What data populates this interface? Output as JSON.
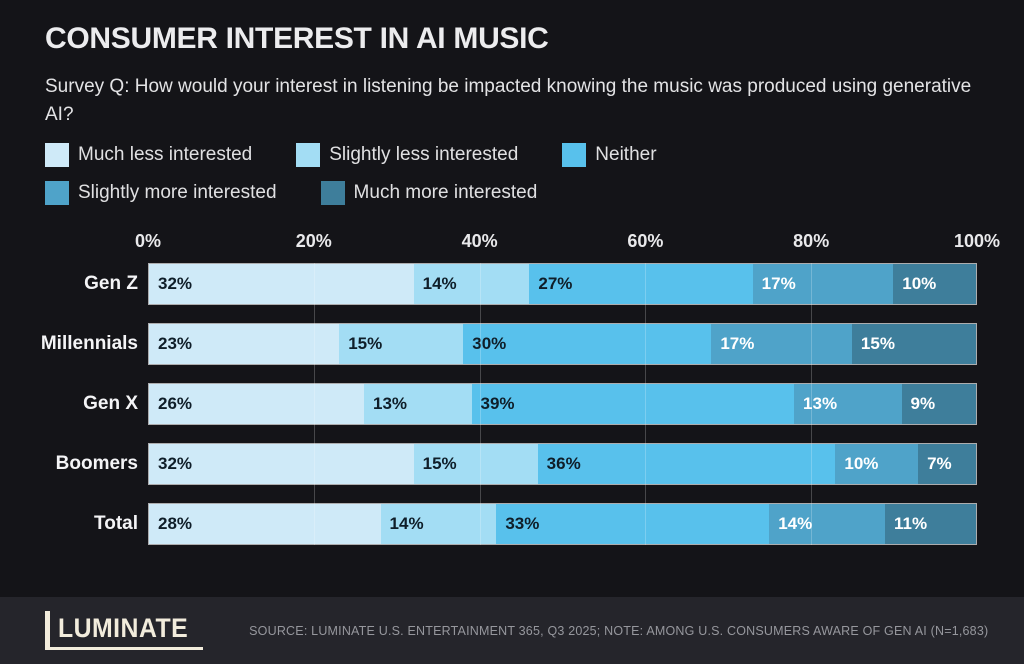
{
  "title": "CONSUMER INTEREST IN AI MUSIC",
  "subtitle": "Survey Q: How would your interest in listening be impacted knowing the music was produced using generative AI?",
  "colors": {
    "background": "#141418",
    "footer_background": "#25252b",
    "bar_border": "rgba(255,255,255,0.65)",
    "label_dark": "#0f1e29",
    "label_light": "#ffffff",
    "logo_cream": "#f2ecdc"
  },
  "chart_data": {
    "type": "bar",
    "orientation": "horizontal",
    "stacked": true,
    "grid": true,
    "legend_position": "top",
    "legend_rows": [
      3,
      2
    ],
    "categories": [
      "Gen Z",
      "Millennials",
      "Gen X",
      "Boomers",
      "Total"
    ],
    "series": [
      {
        "name": "Much less interested",
        "color": "#cfeaf8",
        "text_color": "dark",
        "values": [
          32,
          23,
          26,
          32,
          28
        ]
      },
      {
        "name": "Slightly less interested",
        "color": "#a3ddf4",
        "text_color": "dark",
        "values": [
          14,
          15,
          13,
          15,
          14
        ]
      },
      {
        "name": "Neither",
        "color": "#58c1ec",
        "text_color": "dark",
        "values": [
          27,
          30,
          39,
          36,
          33
        ]
      },
      {
        "name": "Slightly more interested",
        "color": "#4fa3c9",
        "text_color": "light",
        "values": [
          17,
          17,
          13,
          10,
          14
        ]
      },
      {
        "name": "Much more interested",
        "color": "#3e7e9b",
        "text_color": "light",
        "values": [
          10,
          15,
          9,
          7,
          11
        ]
      }
    ],
    "x_ticks": [
      "0%",
      "20%",
      "40%",
      "60%",
      "80%",
      "100%"
    ],
    "xlim": [
      0,
      100
    ],
    "value_suffix": "%"
  },
  "footer": {
    "logo": "LUMINATE",
    "source": "SOURCE: LUMINATE U.S. ENTERTAINMENT 365, Q3 2025; NOTE: AMONG U.S. CONSUMERS AWARE OF GEN AI (N=1,683)"
  }
}
